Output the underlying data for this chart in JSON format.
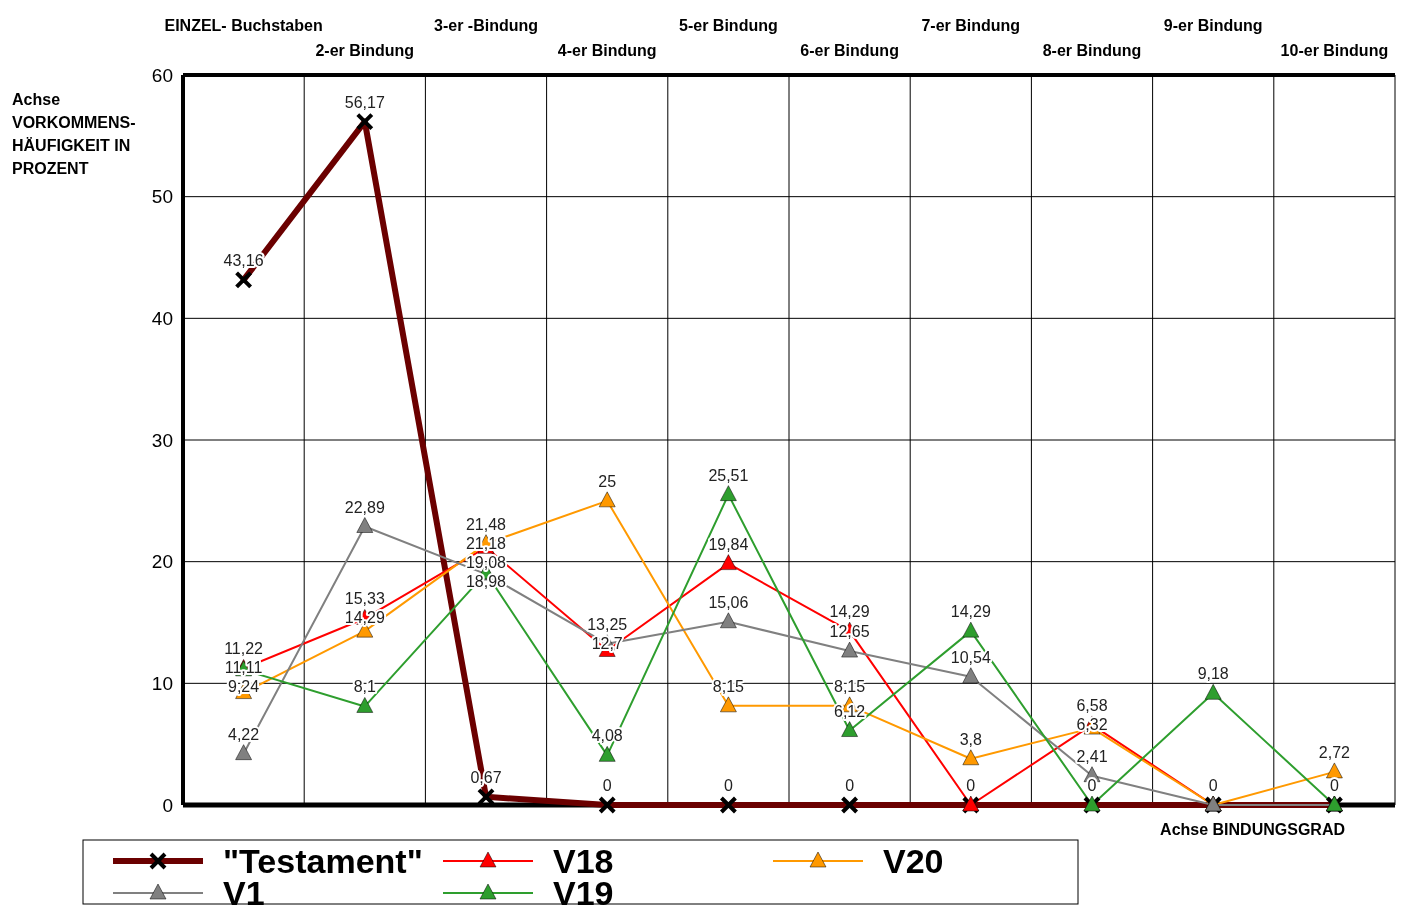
{
  "chart_data": {
    "type": "line",
    "categories": [
      "EINZEL- Buchstaben",
      "2-er Bindung",
      "3-er -Bindung",
      "4-er Bindung",
      "5-er Bindung",
      "6-er Bindung",
      "7-er Bindung",
      "8-er Bindung",
      "9-er Bindung",
      "10-er Bindung"
    ],
    "xlabel": "Achse BINDUNGSGRAD",
    "ylabel": "Achse VORKOMMENS-HÄUFIGKEIT IN PROZENT",
    "ylim": [
      0,
      60
    ],
    "yticks": [
      0,
      10,
      20,
      30,
      40,
      50,
      60
    ],
    "grid": true,
    "legend": "bottom",
    "series": [
      {
        "name": "\"Testament\"",
        "color": "#6b0000",
        "marker": "cross",
        "values": [
          43.16,
          56.17,
          0.67,
          0,
          0,
          0,
          0,
          0,
          0,
          0
        ],
        "value_labels": [
          "43,16",
          "56,17",
          "0,67",
          "0",
          "0",
          "0",
          "0",
          "0",
          "0",
          "0"
        ]
      },
      {
        "name": "V18",
        "color": "#ff0000",
        "marker": "triangle",
        "values": [
          11.22,
          15.33,
          21.18,
          12.7,
          19.84,
          14.29,
          0,
          6.58,
          0,
          0
        ],
        "value_labels": [
          "11,22",
          "15,33",
          "21,18",
          "12,7",
          "19,84",
          "14,29",
          null,
          "6,58",
          null,
          null
        ]
      },
      {
        "name": "V20",
        "color": "#ff9900",
        "marker": "triangle",
        "values": [
          9.24,
          14.29,
          21.48,
          25,
          8.15,
          8.15,
          3.8,
          6.32,
          0,
          2.72
        ],
        "value_labels": [
          "9,24",
          "14,29",
          "21,48",
          "25",
          "8,15",
          "8,15",
          "3,8",
          "6,32",
          null,
          "2,72"
        ]
      },
      {
        "name": "V1",
        "color": "#808080",
        "marker": "triangle",
        "values": [
          4.22,
          22.89,
          18.98,
          13.25,
          15.06,
          12.65,
          10.54,
          2.41,
          0,
          0
        ],
        "value_labels": [
          "4,22",
          "22,89",
          "18,98",
          "13,25",
          "15,06",
          "12,65",
          "10,54",
          "2,41",
          null,
          null
        ]
      },
      {
        "name": "V19",
        "color": "#2e9e2e",
        "marker": "triangle",
        "values": [
          11.11,
          8.1,
          19.08,
          4.08,
          25.51,
          6.12,
          14.29,
          0,
          9.18,
          0
        ],
        "value_labels": [
          "11,11",
          "8,1",
          "19,08",
          "4,08",
          "25,51",
          "6,12",
          "14,29",
          null,
          "9,18",
          null
        ]
      }
    ]
  }
}
